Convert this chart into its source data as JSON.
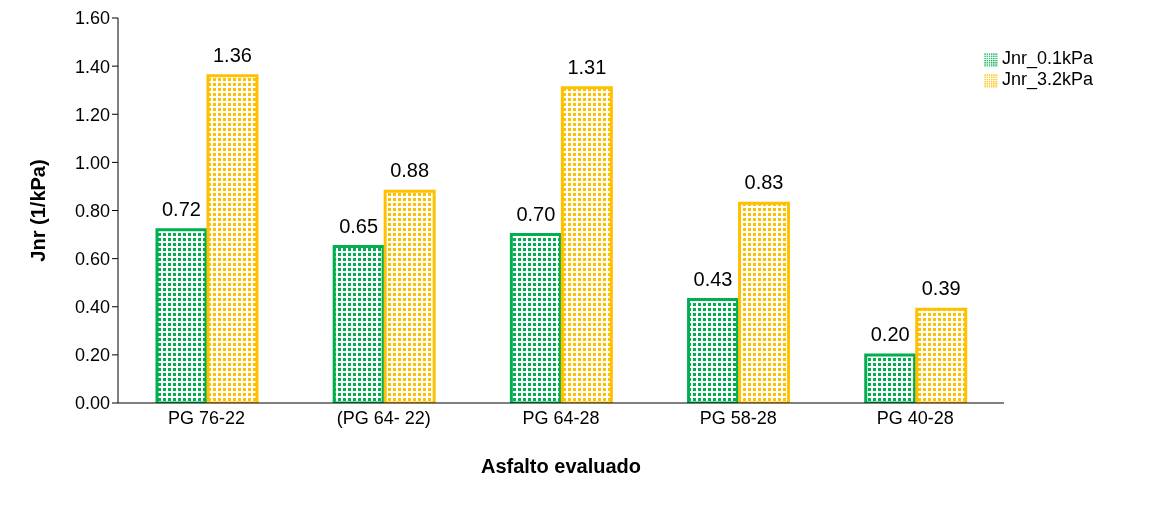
{
  "chart_data": {
    "type": "bar",
    "xlabel": "Asfalto evaluado",
    "ylabel": "Jnr (1/kPa)",
    "categories": [
      "PG 76-22",
      "(PG 64- 22)",
      "PG 64-28",
      "PG 58-28",
      "PG 40-28"
    ],
    "series": [
      {
        "name": "Jnr_0.1kPa",
        "color": "#00b050",
        "values": [
          0.72,
          0.65,
          0.7,
          0.43,
          0.2
        ],
        "value_labels": [
          "0.72",
          "0.65",
          "0.70",
          "0.43",
          "0.20"
        ]
      },
      {
        "name": "Jnr_3.2kPa",
        "color": "#ffc000",
        "values": [
          1.36,
          0.88,
          1.31,
          0.83,
          0.39
        ],
        "value_labels": [
          "1.36",
          "0.88",
          "1.31",
          "0.83",
          "0.39"
        ]
      }
    ],
    "ylim": [
      0,
      1.6
    ],
    "yticks": [
      {
        "value": 0,
        "label": "0.00"
      },
      {
        "value": 0.2,
        "label": "0.20"
      },
      {
        "value": 0.4,
        "label": "0.40"
      },
      {
        "value": 0.6,
        "label": "0.60"
      },
      {
        "value": 0.8,
        "label": "0.80"
      },
      {
        "value": 1,
        "label": "1.00"
      },
      {
        "value": 1.2,
        "label": "1.20"
      },
      {
        "value": 1.4,
        "label": "1.40"
      },
      {
        "value": 1.6,
        "label": "1.60"
      }
    ],
    "grid": false,
    "legend": "top right"
  }
}
